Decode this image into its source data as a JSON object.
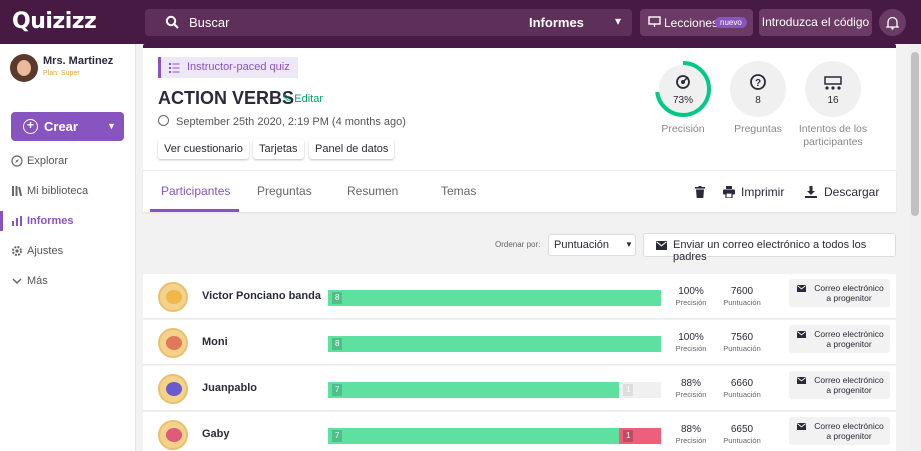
{
  "app": {
    "logo": "Quizizz"
  },
  "topbar": {
    "search_placeholder": "Buscar",
    "search_scope": "Informes",
    "lessons_label": "Lecciones",
    "lessons_badge": "nuevo",
    "join_label": "Introduzca el código"
  },
  "user": {
    "name": "Mrs. Martinez",
    "plan": "Plan: Super"
  },
  "sidebar": {
    "create_label": "Crear",
    "items": [
      {
        "label": "Explorar",
        "icon": "compass-icon"
      },
      {
        "label": "Mi biblioteca",
        "icon": "library-icon"
      },
      {
        "label": "Informes",
        "icon": "reports-icon"
      },
      {
        "label": "Ajustes",
        "icon": "gear-icon"
      },
      {
        "label": "Más",
        "icon": "chevron-down-icon"
      }
    ]
  },
  "quiz": {
    "tag": "Instructor-paced quiz",
    "title": "ACTION VERBS",
    "edit_label": "Editar",
    "date": "September 25th 2020, 2:19 PM (4 months ago)",
    "buttons": [
      "Ver cuestionario",
      "Tarjetas",
      "Panel de datos"
    ]
  },
  "stats": {
    "accuracy": {
      "value": "73%",
      "label": "Precisión",
      "fraction": 0.73
    },
    "questions": {
      "value": "8",
      "label": "Preguntas"
    },
    "attempts": {
      "value": "16",
      "label": "Intentos de los participantes"
    }
  },
  "tabs": [
    "Participantes",
    "Preguntas",
    "Resumen",
    "Temas"
  ],
  "actions": {
    "print": "Imprimir",
    "download": "Descargar"
  },
  "sort": {
    "label": "Ordenar por:",
    "value": "Puntuación",
    "email_all": "Enviar un correo electrónico a todos los padres"
  },
  "labels": {
    "accuracy": "Precisión",
    "score": "Puntuación",
    "email_parent": "Correo electrónico a progenitor"
  },
  "participants": [
    {
      "name": "Victor Ponciano banda",
      "correct": 8,
      "incorrect": 0,
      "unanswered": 0,
      "accuracy": "100%",
      "score": "7600"
    },
    {
      "name": "Moni",
      "correct": 8,
      "incorrect": 0,
      "unanswered": 0,
      "accuracy": "100%",
      "score": "7560"
    },
    {
      "name": "Juanpablo",
      "correct": 7,
      "incorrect": 0,
      "unanswered": 1,
      "accuracy": "88%",
      "score": "6660"
    },
    {
      "name": "Gaby",
      "correct": 7,
      "incorrect": 1,
      "unanswered": 0,
      "accuracy": "88%",
      "score": "6650"
    }
  ],
  "colors": {
    "brand": "#461a42",
    "accent": "#8854c0",
    "correct": "#5ee0a0",
    "incorrect": "#ef5f7b",
    "unanswered": "#dedede"
  }
}
